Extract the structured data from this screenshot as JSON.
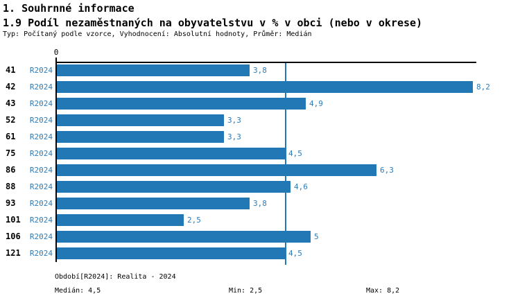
{
  "header": {
    "section_title": "1. Souhrnné informace",
    "chart_title": "1.9 Podíl nezaměstnaných na obyvatelstvu v % v obci (nebo v okrese)",
    "meta": "Typ: Počítaný podle vzorce, Vyhodnocení: Absolutní hodnoty, Průměr: Medián"
  },
  "chart_data": {
    "type": "bar",
    "orientation": "horizontal",
    "title": "1.9 Podíl nezaměstnaných na obyvatelstvu v % v obci (nebo v okrese)",
    "categories": [
      "41",
      "42",
      "43",
      "52",
      "61",
      "75",
      "86",
      "88",
      "93",
      "101",
      "106",
      "121"
    ],
    "series_label": "R2024",
    "values": [
      3.8,
      8.2,
      4.9,
      3.3,
      3.3,
      4.5,
      6.3,
      4.6,
      3.8,
      2.5,
      5,
      4.5
    ],
    "value_labels": [
      "3,8",
      "8,2",
      "4,9",
      "3,3",
      "3,3",
      "4,5",
      "6,3",
      "4,6",
      "3,8",
      "2,5",
      "5",
      "4,5"
    ],
    "xlim": [
      0,
      8.2
    ],
    "zero_label": "0",
    "median_value": 4.5,
    "grid": false,
    "legend": false,
    "colors": {
      "bar": "#2277b5",
      "median_line": "#2277b5",
      "blue_text": "#2b7bba",
      "axis": "#000000"
    }
  },
  "footer": {
    "period": "Období[R2024]: Realita - 2024",
    "median": "Medián: 4,5",
    "min": "Min: 2,5",
    "max": "Max: 8,2"
  }
}
